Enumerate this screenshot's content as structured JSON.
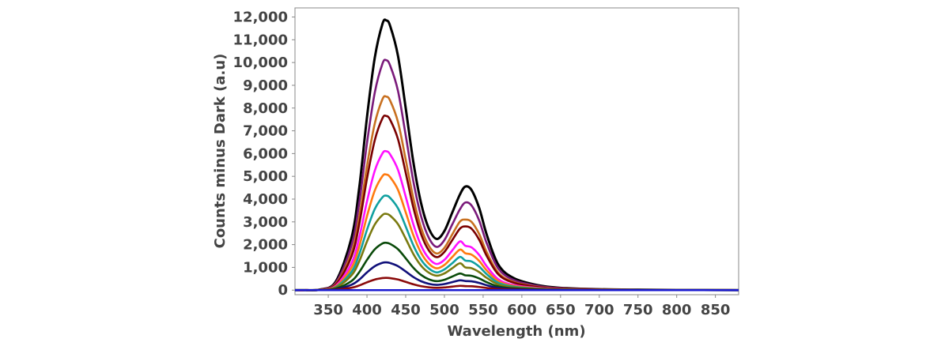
{
  "chart_data": {
    "type": "line",
    "xlabel": "Wavelength (nm)",
    "ylabel": "Counts minus Dark (a.u)",
    "xlim": [
      307,
      880
    ],
    "ylim": [
      -200,
      12400
    ],
    "x_ticks": [
      350,
      400,
      450,
      500,
      550,
      600,
      650,
      700,
      750,
      800,
      850
    ],
    "x_tick_labels": [
      "350",
      "400",
      "450",
      "500",
      "550",
      "600",
      "650",
      "700",
      "750",
      "800",
      "850"
    ],
    "y_ticks": [
      0,
      1000,
      2000,
      3000,
      4000,
      5000,
      6000,
      7000,
      8000,
      9000,
      10000,
      11000,
      12000
    ],
    "y_tick_labels": [
      "0",
      "1,000",
      "2,000",
      "3,000",
      "4,000",
      "5,000",
      "6,000",
      "7,000",
      "8,000",
      "9,000",
      "10,000",
      "11,000",
      "12,000"
    ],
    "grid": false,
    "legend": "none",
    "x": [
      307,
      320,
      340,
      360,
      380,
      390,
      400,
      410,
      420,
      425,
      430,
      440,
      450,
      460,
      470,
      480,
      490,
      500,
      510,
      520,
      527,
      535,
      545,
      555,
      570,
      590,
      620,
      650,
      700,
      750,
      800,
      850,
      880
    ],
    "series": [
      {
        "color": "#000000",
        "values": [
          0,
          0,
          30,
          400,
          2300,
          4500,
          7600,
          10200,
          11700,
          11850,
          11600,
          10300,
          8000,
          5600,
          3800,
          2700,
          2250,
          2600,
          3400,
          4200,
          4550,
          4400,
          3600,
          2400,
          1100,
          520,
          220,
          100,
          40,
          20,
          10,
          5,
          0
        ]
      },
      {
        "color": "#7a1a7a",
        "values": [
          0,
          0,
          25,
          340,
          1960,
          3830,
          6460,
          8670,
          9950,
          10100,
          9860,
          8760,
          6800,
          4760,
          3230,
          2290,
          1900,
          2200,
          2880,
          3550,
          3850,
          3720,
          3050,
          2030,
          930,
          440,
          190,
          85,
          35,
          17,
          8,
          4,
          0
        ]
      },
      {
        "color": "#c87020",
        "values": [
          0,
          0,
          21,
          290,
          1650,
          3230,
          5450,
          7310,
          8390,
          8500,
          8320,
          7390,
          5740,
          4020,
          2730,
          1940,
          1610,
          1860,
          2440,
          3010,
          3100,
          3000,
          2460,
          1640,
          750,
          355,
          150,
          70,
          28,
          14,
          7,
          3,
          0
        ]
      },
      {
        "color": "#7a0000",
        "values": [
          0,
          0,
          19,
          260,
          1480,
          2900,
          4900,
          6580,
          7550,
          7650,
          7480,
          6640,
          5160,
          3610,
          2450,
          1740,
          1450,
          1680,
          2190,
          2700,
          2800,
          2700,
          2210,
          1480,
          680,
          320,
          135,
          62,
          25,
          12,
          6,
          3,
          0
        ]
      },
      {
        "color": "#ff10ff",
        "values": [
          0,
          0,
          15,
          205,
          1180,
          2310,
          3900,
          5240,
          6010,
          6100,
          5960,
          5290,
          4110,
          2880,
          1950,
          1390,
          1150,
          1330,
          1740,
          2140,
          1950,
          1880,
          1540,
          1030,
          470,
          220,
          95,
          43,
          17,
          8,
          4,
          2,
          0
        ]
      },
      {
        "color": "#ff7a10",
        "values": [
          0,
          0,
          13,
          172,
          980,
          1920,
          3250,
          4370,
          5010,
          5080,
          4960,
          4410,
          3420,
          2400,
          1630,
          1160,
          960,
          1110,
          1450,
          1780,
          1620,
          1560,
          1280,
          850,
          390,
          185,
          78,
          36,
          14,
          7,
          4,
          2,
          0
        ]
      },
      {
        "color": "#10a0a0",
        "values": [
          0,
          0,
          10,
          140,
          800,
          1570,
          2650,
          3560,
          4080,
          4150,
          4050,
          3600,
          2800,
          1960,
          1330,
          950,
          780,
          910,
          1180,
          1460,
          1300,
          1260,
          1030,
          690,
          315,
          150,
          63,
          29,
          12,
          6,
          3,
          1,
          0
        ]
      },
      {
        "color": "#7a7a10",
        "values": [
          0,
          0,
          8,
          113,
          650,
          1270,
          2140,
          2880,
          3300,
          3350,
          3270,
          2900,
          2260,
          1580,
          1070,
          765,
          635,
          735,
          960,
          1180,
          1000,
          965,
          790,
          530,
          240,
          115,
          49,
          22,
          9,
          4,
          2,
          1,
          0
        ]
      },
      {
        "color": "#0a4a0a",
        "values": [
          0,
          0,
          5,
          70,
          400,
          790,
          1330,
          1790,
          2050,
          2080,
          2030,
          1800,
          1400,
          980,
          665,
          475,
          395,
          455,
          595,
          730,
          650,
          630,
          515,
          345,
          158,
          75,
          32,
          14,
          6,
          3,
          1,
          1,
          0
        ]
      },
      {
        "color": "#10107a",
        "values": [
          0,
          0,
          4,
          41,
          235,
          460,
          780,
          1050,
          1200,
          1220,
          1190,
          1055,
          820,
          575,
          390,
          278,
          232,
          268,
          350,
          430,
          400,
          388,
          318,
          212,
          97,
          46,
          20,
          9,
          4,
          2,
          1,
          0,
          0
        ]
      },
      {
        "color": "#8a0a0a",
        "values": [
          0,
          0,
          2,
          18,
          105,
          205,
          345,
          465,
          530,
          540,
          527,
          467,
          363,
          254,
          172,
          123,
          102,
          118,
          154,
          190,
          175,
          170,
          139,
          93,
          43,
          20,
          9,
          4,
          2,
          1,
          0,
          0,
          0
        ]
      },
      {
        "color": "#1a1ad0",
        "values": [
          0,
          0,
          0,
          0,
          0,
          0,
          0,
          0,
          0,
          0,
          0,
          0,
          0,
          0,
          0,
          0,
          0,
          0,
          0,
          0,
          0,
          0,
          0,
          0,
          0,
          0,
          0,
          0,
          0,
          0,
          0,
          0,
          0
        ]
      }
    ]
  }
}
